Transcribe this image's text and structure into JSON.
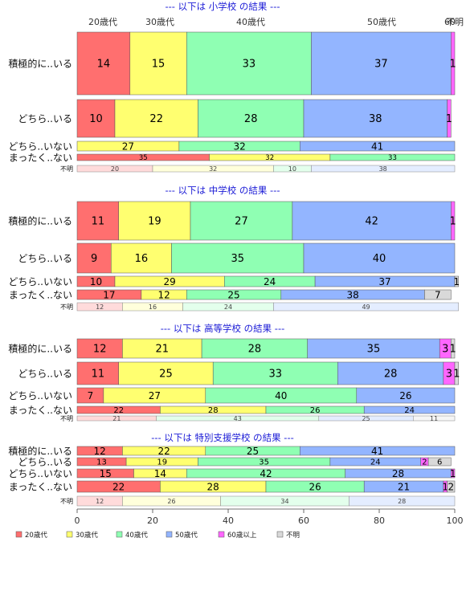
{
  "chart_data": {
    "type": "bar",
    "orientation": "horizontal",
    "stacked": "percent",
    "xlim": [
      0,
      100
    ],
    "x_ticks": [
      "0",
      "20",
      "40",
      "60",
      "80",
      "100"
    ],
    "grid": false,
    "legend_position": "bottom-left",
    "series": [
      {
        "name": "20歳代",
        "color": "#FF6F6F"
      },
      {
        "name": "30歳代",
        "color": "#FFFF70"
      },
      {
        "name": "40歳代",
        "color": "#8FFFB3"
      },
      {
        "name": "50歳代",
        "color": "#93B5FF"
      },
      {
        "name": "60歳以上",
        "color": "#FF66FF"
      },
      {
        "name": "不明",
        "color": "#D9D9D9"
      }
    ],
    "top_column_labels": [
      "20歳代",
      "30歳代",
      "40歳代",
      "50歳代",
      "60",
      "不明"
    ],
    "panels": [
      {
        "title": "--- 以下は 小学校 の結果 ---",
        "rows": [
          {
            "label": "積極的に..いる",
            "values": [
              14,
              15,
              33,
              37,
              1,
              0
            ]
          },
          {
            "label": "どちら..いる",
            "values": [
              10,
              22,
              28,
              38,
              1,
              0
            ]
          },
          {
            "label": "どちら..いない",
            "values": [
              0,
              27,
              32,
              41,
              0,
              0
            ]
          },
          {
            "label": "まったく..ない",
            "values": [
              35,
              32,
              33,
              0,
              0,
              0
            ]
          },
          {
            "label": "不明",
            "values": [
              20,
              32,
              10,
              38,
              0,
              0
            ],
            "light": true
          }
        ]
      },
      {
        "title": "--- 以下は 中学校 の結果 ---",
        "rows": [
          {
            "label": "積極的に..いる",
            "values": [
              11,
              19,
              27,
              42,
              1,
              0
            ]
          },
          {
            "label": "どちら..いる",
            "values": [
              9,
              16,
              35,
              40,
              0,
              0
            ]
          },
          {
            "label": "どちら..いない",
            "values": [
              10,
              29,
              24,
              37,
              0,
              1
            ]
          },
          {
            "label": "まったく..ない",
            "values": [
              17,
              12,
              25,
              38,
              0,
              7
            ]
          },
          {
            "label": "不明",
            "values": [
              12,
              16,
              24,
              49,
              0,
              0
            ],
            "light": true
          }
        ]
      },
      {
        "title": "--- 以下は 高等学校 の結果 ---",
        "rows": [
          {
            "label": "積極的に..いる",
            "values": [
              12,
              21,
              28,
              35,
              3,
              1
            ]
          },
          {
            "label": "どちら..いる",
            "values": [
              11,
              25,
              33,
              28,
              3,
              1
            ]
          },
          {
            "label": "どちら..いない",
            "values": [
              7,
              27,
              40,
              26,
              0,
              0
            ]
          },
          {
            "label": "まったく..ない",
            "values": [
              22,
              28,
              26,
              24,
              0,
              0
            ]
          },
          {
            "label": "不明",
            "values": [
              21,
              0,
              43,
              25,
              0,
              11
            ],
            "light": true
          }
        ]
      },
      {
        "title": "--- 以下は 特別支援学校 の結果 ---",
        "rows": [
          {
            "label": "積極的に..いる",
            "values": [
              12,
              22,
              25,
              41,
              0,
              0
            ]
          },
          {
            "label": "どちら..いる",
            "values": [
              13,
              19,
              35,
              24,
              2,
              6
            ]
          },
          {
            "label": "どちら..いない",
            "values": [
              15,
              14,
              42,
              28,
              1,
              0
            ]
          },
          {
            "label": "まったく..ない",
            "values": [
              22,
              28,
              26,
              21,
              1,
              2
            ]
          },
          {
            "label": "不明",
            "values": [
              12,
              26,
              34,
              28,
              0,
              0
            ],
            "light": true
          }
        ]
      }
    ]
  }
}
